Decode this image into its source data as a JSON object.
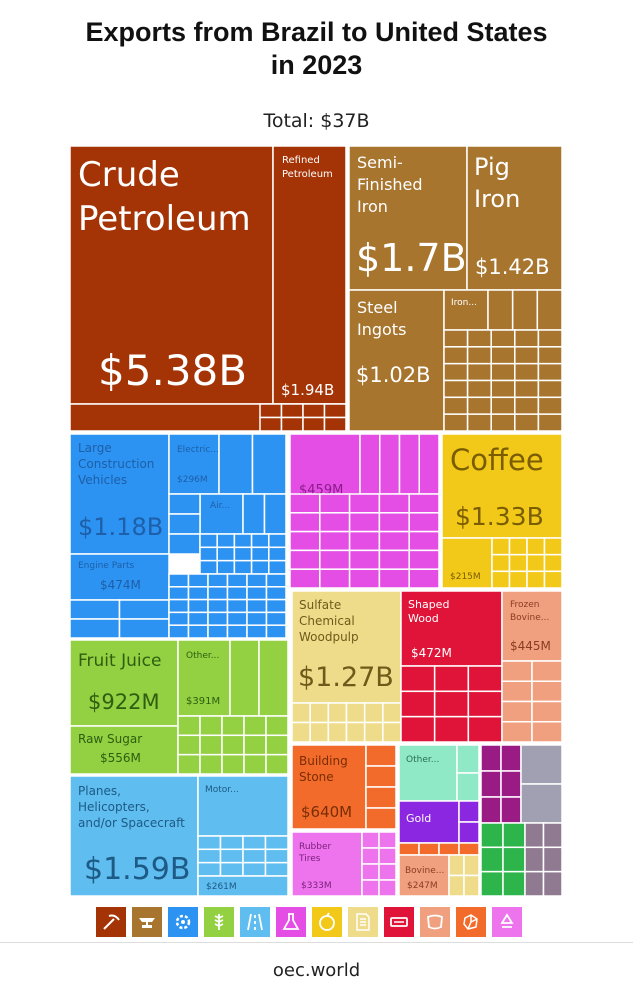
{
  "header": {
    "title_line1": "Exports from Brazil to United States",
    "title_line2": "in 2023",
    "total": "Total: $37B"
  },
  "footer": {
    "source": "oec.world"
  },
  "colors": {
    "mineral": "#a43406",
    "metals": "#a8752f",
    "machinery": "#2d93f2",
    "chemical": "#e54ee5",
    "vegetable": "#f2c919",
    "paper": "#efdc8a",
    "wood": "#e01439",
    "animal": "#f0a07e",
    "foodstuffs": "#93d042",
    "transport": "#5fbdf0",
    "stone": "#f26b2b",
    "plastics": "#ee74ee",
    "instruments": "#8fe9c7",
    "misc": "#9b1b84",
    "gold": "#8b27e0",
    "green": "#2db54b"
  },
  "legend": [
    {
      "name": "mineral-products",
      "icon": "pick-icon",
      "color": "#a43406"
    },
    {
      "name": "metals",
      "icon": "anvil-icon",
      "color": "#a8752f"
    },
    {
      "name": "machines",
      "icon": "gear-icon",
      "color": "#2d93f2"
    },
    {
      "name": "vegetable-products",
      "icon": "wheat-icon",
      "color": "#93d042"
    },
    {
      "name": "transportation",
      "icon": "road-icon",
      "color": "#5fbdf0"
    },
    {
      "name": "chemical-products",
      "icon": "flask-icon",
      "color": "#e54ee5"
    },
    {
      "name": "foodstuffs",
      "icon": "fruit-icon",
      "color": "#f2c919"
    },
    {
      "name": "paper-goods",
      "icon": "document-icon",
      "color": "#efdc8a"
    },
    {
      "name": "wood-products",
      "icon": "saw-icon",
      "color": "#e01439"
    },
    {
      "name": "animal-hides",
      "icon": "hide-icon",
      "color": "#f0a07e"
    },
    {
      "name": "stone-and-glass",
      "icon": "stone-icon",
      "color": "#f26b2b"
    },
    {
      "name": "plastics-and-rubbers",
      "icon": "recycle-icon",
      "color": "#ee74ee"
    }
  ],
  "chart_data": {
    "type": "treemap",
    "title": "Exports from Brazil to United States in 2023",
    "subtitle": "Total: $37B",
    "labeled_items": [
      {
        "name": "Crude Petroleum",
        "value": "$5.38B",
        "category": "mineral"
      },
      {
        "name": "Refined Petroleum",
        "value": "$1.94B",
        "category": "mineral"
      },
      {
        "name": "Semi-Finished Iron",
        "value": "$1.7B",
        "category": "metals"
      },
      {
        "name": "Pig Iron",
        "value": "$1.42B",
        "category": "metals"
      },
      {
        "name": "Steel Ingots",
        "value": "$1.02B",
        "category": "metals"
      },
      {
        "name": "Iron...",
        "value": "",
        "category": "metals"
      },
      {
        "name": "Large Construction Vehicles",
        "value": "$1.18B",
        "category": "machinery"
      },
      {
        "name": "Electric...",
        "value": "$296M",
        "category": "machinery"
      },
      {
        "name": "Air...",
        "value": "",
        "category": "machinery"
      },
      {
        "name": "Engine Parts",
        "value": "$474M",
        "category": "machinery"
      },
      {
        "name": "",
        "value": "$459M",
        "category": "chemical"
      },
      {
        "name": "Coffee",
        "value": "$1.33B",
        "category": "vegetable"
      },
      {
        "name": "",
        "value": "$215M",
        "category": "vegetable"
      },
      {
        "name": "Sulfate Chemical Woodpulp",
        "value": "$1.27B",
        "category": "paper"
      },
      {
        "name": "Shaped Wood",
        "value": "$472M",
        "category": "wood"
      },
      {
        "name": "Frozen Bovine...",
        "value": "$445M",
        "category": "animal"
      },
      {
        "name": "Fruit Juice",
        "value": "$922M",
        "category": "foodstuffs"
      },
      {
        "name": "Other...",
        "value": "$391M",
        "category": "foodstuffs"
      },
      {
        "name": "Raw Sugar",
        "value": "$556M",
        "category": "foodstuffs"
      },
      {
        "name": "Planes, Helicopters, and/or Spacecraft",
        "value": "$1.59B",
        "category": "transport"
      },
      {
        "name": "Motor...",
        "value": "$261M",
        "category": "transport"
      },
      {
        "name": "Building Stone",
        "value": "$640M",
        "category": "stone"
      },
      {
        "name": "Rubber Tires",
        "value": "$333M",
        "category": "plastics"
      },
      {
        "name": "Other...",
        "value": "",
        "category": "instruments"
      },
      {
        "name": "Gold",
        "value": "",
        "category": "gold"
      },
      {
        "name": "Bovine...",
        "value": "$247M",
        "category": "animal"
      }
    ],
    "text": {
      "crude1": "Crude",
      "crude2": "Petroleum",
      "crude_v": "$5.38B",
      "ref1": "Refined",
      "ref2": "Petroleum",
      "ref_v": "$1.94B",
      "semi1": "Semi-",
      "semi2": "Finished",
      "semi3": "Iron",
      "semi_v": "$1.7B",
      "pig1": "Pig",
      "pig2": "Iron",
      "pig_v": "$1.42B",
      "steel1": "Steel",
      "steel2": "Ingots",
      "steel_v": "$1.02B",
      "iron": "Iron...",
      "lcv1": "Large",
      "lcv2": "Construction",
      "lcv3": "Vehicles",
      "lcv_v": "$1.18B",
      "elec": "Electric...",
      "elec_v": "$296M",
      "air": "Air...",
      "eng": "Engine Parts",
      "eng_v": "$474M",
      "chem_v": "$459M",
      "coffee": "Coffee",
      "coffee_v": "$1.33B",
      "veg_v": "$215M",
      "pulp1": "Sulfate",
      "pulp2": "Chemical",
      "pulp3": "Woodpulp",
      "pulp_v": "$1.27B",
      "wood1": "Shaped",
      "wood2": "Wood",
      "wood_v": "$472M",
      "bov1": "Frozen",
      "bov2": "Bovine...",
      "bov_v": "$445M",
      "juice": "Fruit Juice",
      "juice_v": "$922M",
      "other_f": "Other...",
      "other_f_v": "$391M",
      "sugar": "Raw Sugar",
      "sugar_v": "$556M",
      "plane1": "Planes,",
      "plane2": "Helicopters,",
      "plane3": "and/or Spacecraft",
      "plane_v": "$1.59B",
      "motor": "Motor...",
      "motor_v": "$261M",
      "stone1": "Building",
      "stone2": "Stone",
      "stone_v": "$640M",
      "tire1": "Rubber",
      "tire2": "Tires",
      "tire_v": "$333M",
      "other_i": "Other...",
      "gold": "Gold",
      "bovine": "Bovine...",
      "bovine_v": "$247M"
    }
  }
}
